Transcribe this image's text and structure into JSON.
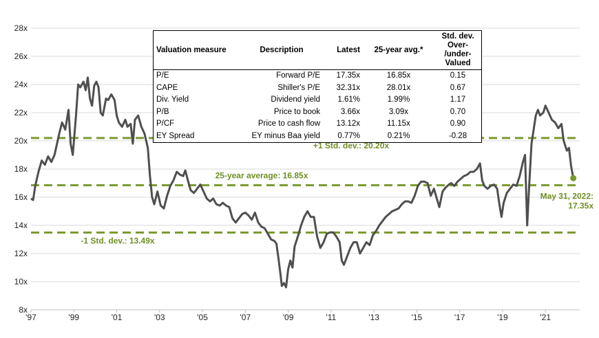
{
  "chart_data": {
    "type": "line",
    "title": "",
    "xlabel": "",
    "ylabel": "",
    "x_ticks": [
      "'97",
      "'99",
      "'01",
      "'03",
      "'05",
      "'07",
      "'09",
      "'11",
      "'13",
      "'15",
      "'17",
      "'19",
      "'21"
    ],
    "x_range": [
      1997,
      2022.6
    ],
    "y_ticks": [
      "8x",
      "10x",
      "12x",
      "14x",
      "16x",
      "18x",
      "20x",
      "22x",
      "24x",
      "26x",
      "28x"
    ],
    "ylim": [
      8,
      28
    ],
    "series": [
      {
        "name": "Forward P/E",
        "color": "#4f4f4f",
        "points": [
          [
            1997.0,
            15.9
          ],
          [
            1997.1,
            15.8
          ],
          [
            1997.2,
            16.8
          ],
          [
            1997.35,
            17.8
          ],
          [
            1997.5,
            18.6
          ],
          [
            1997.65,
            18.3
          ],
          [
            1997.8,
            18.9
          ],
          [
            1997.95,
            18.5
          ],
          [
            1998.1,
            19.0
          ],
          [
            1998.3,
            20.4
          ],
          [
            1998.45,
            21.3
          ],
          [
            1998.6,
            20.8
          ],
          [
            1998.75,
            22.2
          ],
          [
            1998.85,
            19.8
          ],
          [
            1998.95,
            19.0
          ],
          [
            1999.1,
            21.8
          ],
          [
            1999.2,
            24.0
          ],
          [
            1999.3,
            23.8
          ],
          [
            1999.45,
            24.2
          ],
          [
            1999.55,
            23.6
          ],
          [
            1999.65,
            24.5
          ],
          [
            1999.75,
            23.0
          ],
          [
            1999.85,
            22.5
          ],
          [
            1999.95,
            23.9
          ],
          [
            2000.05,
            24.2
          ],
          [
            2000.15,
            23.8
          ],
          [
            2000.25,
            22.0
          ],
          [
            2000.35,
            21.8
          ],
          [
            2000.5,
            23.0
          ],
          [
            2000.6,
            22.9
          ],
          [
            2000.75,
            23.3
          ],
          [
            2000.9,
            22.9
          ],
          [
            2001.0,
            21.8
          ],
          [
            2001.1,
            21.3
          ],
          [
            2001.25,
            21.0
          ],
          [
            2001.4,
            21.5
          ],
          [
            2001.5,
            21.0
          ],
          [
            2001.65,
            21.2
          ],
          [
            2001.75,
            19.8
          ],
          [
            2001.85,
            21.5
          ],
          [
            2002.0,
            21.8
          ],
          [
            2002.15,
            21.0
          ],
          [
            2002.3,
            20.5
          ],
          [
            2002.45,
            19.5
          ],
          [
            2002.55,
            17.5
          ],
          [
            2002.65,
            16.0
          ],
          [
            2002.75,
            15.5
          ],
          [
            2002.9,
            16.4
          ],
          [
            2003.05,
            15.4
          ],
          [
            2003.2,
            15.2
          ],
          [
            2003.35,
            16.1
          ],
          [
            2003.5,
            16.8
          ],
          [
            2003.65,
            17.2
          ],
          [
            2003.8,
            17.8
          ],
          [
            2003.95,
            17.6
          ],
          [
            2004.1,
            17.5
          ],
          [
            2004.2,
            17.9
          ],
          [
            2004.3,
            17.3
          ],
          [
            2004.45,
            16.5
          ],
          [
            2004.6,
            16.3
          ],
          [
            2004.75,
            16.6
          ],
          [
            2004.9,
            16.9
          ],
          [
            2005.05,
            16.4
          ],
          [
            2005.2,
            15.9
          ],
          [
            2005.35,
            15.7
          ],
          [
            2005.5,
            15.9
          ],
          [
            2005.65,
            15.5
          ],
          [
            2005.8,
            15.4
          ],
          [
            2005.95,
            15.6
          ],
          [
            2006.1,
            15.4
          ],
          [
            2006.25,
            15.3
          ],
          [
            2006.4,
            14.5
          ],
          [
            2006.55,
            14.2
          ],
          [
            2006.7,
            14.5
          ],
          [
            2006.85,
            14.8
          ],
          [
            2007.0,
            14.9
          ],
          [
            2007.15,
            14.7
          ],
          [
            2007.3,
            14.4
          ],
          [
            2007.45,
            14.9
          ],
          [
            2007.6,
            14.2
          ],
          [
            2007.75,
            13.9
          ],
          [
            2007.9,
            13.8
          ],
          [
            2008.05,
            13.4
          ],
          [
            2008.2,
            13.0
          ],
          [
            2008.35,
            12.9
          ],
          [
            2008.45,
            12.7
          ],
          [
            2008.55,
            11.6
          ],
          [
            2008.65,
            10.4
          ],
          [
            2008.7,
            9.7
          ],
          [
            2008.8,
            9.9
          ],
          [
            2008.9,
            9.6
          ],
          [
            2009.0,
            10.9
          ],
          [
            2009.1,
            11.5
          ],
          [
            2009.2,
            11.0
          ],
          [
            2009.3,
            12.5
          ],
          [
            2009.45,
            13.2
          ],
          [
            2009.6,
            14.0
          ],
          [
            2009.75,
            14.6
          ],
          [
            2009.9,
            15.0
          ],
          [
            2010.05,
            14.6
          ],
          [
            2010.2,
            14.6
          ],
          [
            2010.35,
            13.2
          ],
          [
            2010.5,
            12.4
          ],
          [
            2010.65,
            12.8
          ],
          [
            2010.8,
            13.4
          ],
          [
            2010.95,
            13.5
          ],
          [
            2011.1,
            13.5
          ],
          [
            2011.25,
            13.2
          ],
          [
            2011.4,
            12.8
          ],
          [
            2011.5,
            11.5
          ],
          [
            2011.6,
            11.2
          ],
          [
            2011.75,
            11.8
          ],
          [
            2011.9,
            12.4
          ],
          [
            2012.05,
            12.8
          ],
          [
            2012.2,
            12.8
          ],
          [
            2012.35,
            12.0
          ],
          [
            2012.5,
            12.4
          ],
          [
            2012.65,
            12.8
          ],
          [
            2012.8,
            12.6
          ],
          [
            2012.95,
            13.3
          ],
          [
            2013.1,
            13.6
          ],
          [
            2013.25,
            14.0
          ],
          [
            2013.4,
            14.3
          ],
          [
            2013.55,
            14.6
          ],
          [
            2013.7,
            14.8
          ],
          [
            2013.85,
            15.0
          ],
          [
            2014.0,
            15.1
          ],
          [
            2014.15,
            15.2
          ],
          [
            2014.3,
            15.5
          ],
          [
            2014.45,
            15.7
          ],
          [
            2014.6,
            15.7
          ],
          [
            2014.75,
            15.6
          ],
          [
            2014.9,
            16.1
          ],
          [
            2015.05,
            16.8
          ],
          [
            2015.2,
            17.1
          ],
          [
            2015.35,
            17.1
          ],
          [
            2015.5,
            17.0
          ],
          [
            2015.65,
            16.1
          ],
          [
            2015.8,
            16.6
          ],
          [
            2015.95,
            15.8
          ],
          [
            2016.05,
            15.3
          ],
          [
            2016.2,
            16.4
          ],
          [
            2016.35,
            16.7
          ],
          [
            2016.5,
            16.9
          ],
          [
            2016.6,
            17.0
          ],
          [
            2016.75,
            16.8
          ],
          [
            2016.9,
            17.1
          ],
          [
            2017.05,
            17.3
          ],
          [
            2017.2,
            17.5
          ],
          [
            2017.35,
            17.6
          ],
          [
            2017.5,
            17.8
          ],
          [
            2017.65,
            17.8
          ],
          [
            2017.8,
            18.0
          ],
          [
            2017.95,
            18.4
          ],
          [
            2018.05,
            17.2
          ],
          [
            2018.15,
            16.8
          ],
          [
            2018.3,
            16.6
          ],
          [
            2018.45,
            16.8
          ],
          [
            2018.6,
            16.9
          ],
          [
            2018.75,
            16.6
          ],
          [
            2018.85,
            15.5
          ],
          [
            2018.95,
            14.6
          ],
          [
            2019.05,
            15.6
          ],
          [
            2019.2,
            16.3
          ],
          [
            2019.35,
            16.6
          ],
          [
            2019.5,
            16.9
          ],
          [
            2019.65,
            16.8
          ],
          [
            2019.8,
            17.5
          ],
          [
            2019.95,
            18.5
          ],
          [
            2020.05,
            19.0
          ],
          [
            2020.15,
            14.0
          ],
          [
            2020.25,
            17.0
          ],
          [
            2020.35,
            19.8
          ],
          [
            2020.45,
            20.8
          ],
          [
            2020.55,
            21.8
          ],
          [
            2020.65,
            22.2
          ],
          [
            2020.75,
            21.8
          ],
          [
            2020.9,
            22.0
          ],
          [
            2021.0,
            22.5
          ],
          [
            2021.15,
            22.0
          ],
          [
            2021.3,
            21.5
          ],
          [
            2021.45,
            21.3
          ],
          [
            2021.6,
            20.9
          ],
          [
            2021.75,
            21.2
          ],
          [
            2021.85,
            20.0
          ],
          [
            2022.0,
            19.3
          ],
          [
            2022.1,
            19.5
          ],
          [
            2022.2,
            18.2
          ],
          [
            2022.3,
            17.35
          ]
        ]
      }
    ],
    "reference_lines": [
      {
        "name": "+1 Std. dev.",
        "value": 20.2,
        "label": "+1 Std. dev.: 20.20x",
        "style": "dashed",
        "color": "#7a9a2e"
      },
      {
        "name": "25-year average",
        "value": 16.85,
        "label": "25-year average: 16.85x",
        "style": "dashed",
        "color": "#7a9a2e"
      },
      {
        "name": "-1 Std. dev.",
        "value": 13.49,
        "label": "-1 Std. dev.: 13.49x",
        "style": "dashed",
        "color": "#7a9a2e"
      }
    ],
    "end_point": {
      "x": 2022.3,
      "value": 17.35,
      "label_line1": "May 31, 2022:",
      "label_line2": "17.35x",
      "color": "#7a9a2e"
    },
    "grid": true
  },
  "valuation_table": {
    "headers": [
      "Valuation measure",
      "Description",
      "Latest",
      "25-year avg.*",
      "Std. dev. Over-/under-Valued"
    ],
    "header_std_line1": "Std. dev. Over-",
    "header_std_line2": "/under-Valued",
    "rows": [
      [
        "P/E",
        "Forward P/E",
        "17.35x",
        "16.85x",
        "0.15"
      ],
      [
        "CAPE",
        "Shiller's P/E",
        "32.31x",
        "28.01x",
        "0.67"
      ],
      [
        "Div. Yield",
        "Dividend yield",
        "1.61%",
        "1.99%",
        "1.17"
      ],
      [
        "P/B",
        "Price to book",
        "3.66x",
        "3.09x",
        "0.70"
      ],
      [
        "P/CF",
        "Price to cash flow",
        "13.12x",
        "11.15x",
        "0.90"
      ],
      [
        "EY Spread",
        "EY minus Baa yield",
        "0.77%",
        "0.21%",
        "-0.28"
      ]
    ]
  }
}
